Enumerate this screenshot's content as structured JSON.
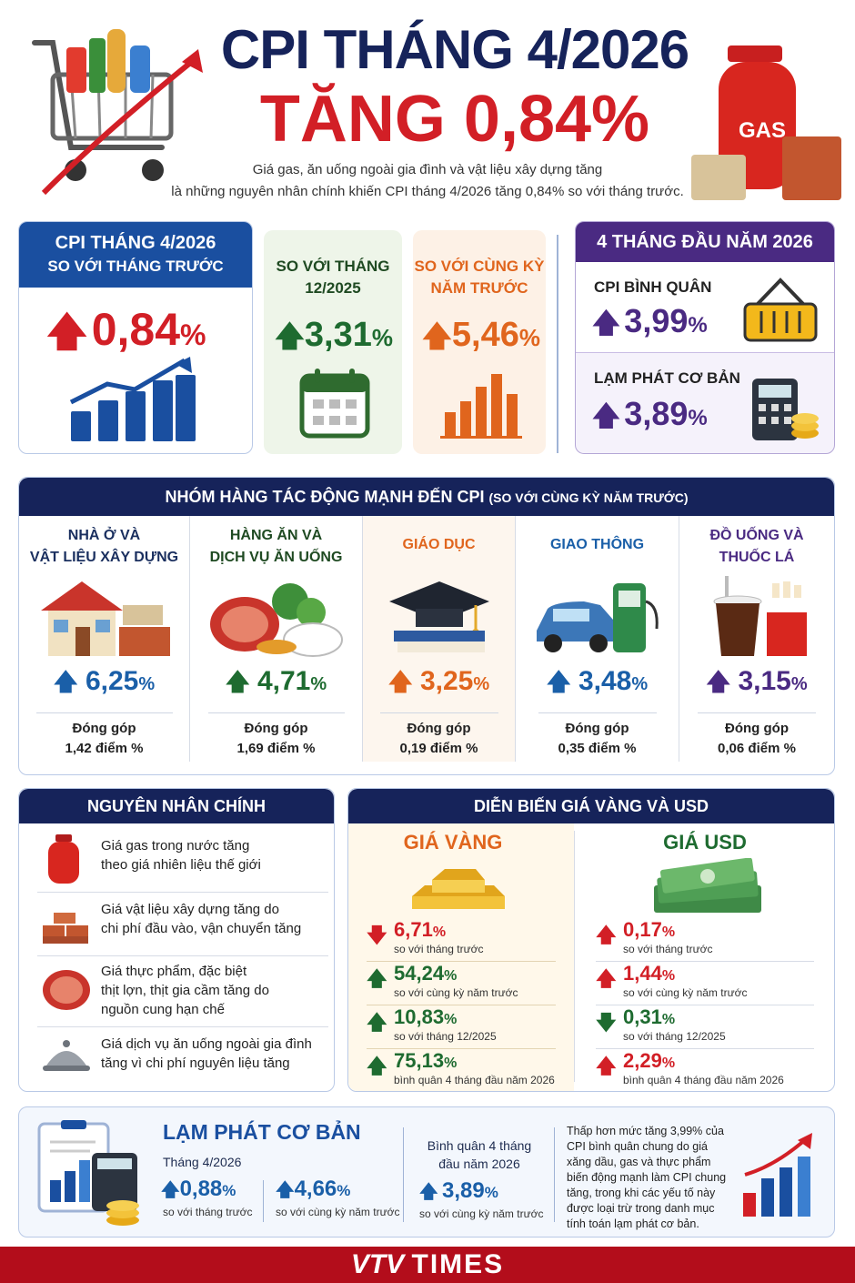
{
  "header": {
    "title_line1": "CPI THÁNG 4/2026",
    "title_line2": "TĂNG 0,84%",
    "subtitle_line1": "Giá gas, ăn uống ngoài gia đình và vật liệu xây dựng tăng",
    "subtitle_line2": "là những nguyên nhân chính khiến CPI tháng 4/2026 tăng 0,84% so với tháng trước.",
    "gas_label": "GAS"
  },
  "kpi": {
    "main": {
      "heading1": "CPI THÁNG 4/2026",
      "heading2": "SO VỚI THÁNG TRƯỚC",
      "value": "0,84",
      "unit": "%"
    },
    "vs_dec": {
      "heading1": "SO VỚI THÁNG",
      "heading2": "12/2025",
      "value": "3,31",
      "unit": "%"
    },
    "vs_yoy": {
      "heading1": "SO VỚI CÙNG KỲ",
      "heading2": "NĂM TRƯỚC",
      "value": "5,46",
      "unit": "%"
    },
    "four_months": {
      "heading": "4 THÁNG ĐẦU NĂM 2026",
      "cpi_label": "CPI BÌNH QUÂN",
      "cpi_value": "3,99",
      "cpi_unit": "%",
      "core_label": "LẠM PHÁT CƠ BẢN",
      "core_value": "3,89",
      "core_unit": "%"
    }
  },
  "groups": {
    "heading": "NHÓM HÀNG TÁC ĐỘNG MẠNH ĐẾN CPI",
    "heading_note": "(SO VỚI CÙNG KỲ NĂM TRƯỚC)",
    "items": [
      {
        "name1": "NHÀ Ở VÀ",
        "name2": "VẬT LIỆU XÂY DỰNG",
        "value": "6,25",
        "unit": "%",
        "contrib_label": "Đóng góp",
        "contrib": "1,42 điểm %"
      },
      {
        "name1": "HÀNG ĂN VÀ",
        "name2": "DỊCH VỤ ĂN UỐNG",
        "value": "4,71",
        "unit": "%",
        "contrib_label": "Đóng góp",
        "contrib": "1,69 điểm %"
      },
      {
        "name1": "GIÁO DỤC",
        "name2": "",
        "value": "3,25",
        "unit": "%",
        "contrib_label": "Đóng góp",
        "contrib": "0,19 điểm %"
      },
      {
        "name1": "GIAO THÔNG",
        "name2": "",
        "value": "3,48",
        "unit": "%",
        "contrib_label": "Đóng góp",
        "contrib": "0,35 điểm %"
      },
      {
        "name1": "ĐỒ UỐNG VÀ",
        "name2": "THUỐC LÁ",
        "value": "3,15",
        "unit": "%",
        "contrib_label": "Đóng góp",
        "contrib": "0,06 điểm %"
      }
    ],
    "colors": [
      "#1a5fa8",
      "#1e6b30",
      "#e0651d",
      "#1a5fa8",
      "#4a2a82"
    ]
  },
  "reasons": {
    "heading": "NGUYÊN NHÂN CHÍNH",
    "items": [
      {
        "line1": "Giá gas trong nước tăng",
        "line2": "theo giá nhiên liệu thế giới",
        "line3": ""
      },
      {
        "line1": "Giá vật liệu xây dựng tăng do",
        "line2": "chi phí đầu vào, vận chuyển tăng",
        "line3": ""
      },
      {
        "line1": "Giá thực phẩm, đặc biệt",
        "line2": "thịt lợn, thịt gia cầm tăng do",
        "line3": "nguồn cung hạn chế"
      },
      {
        "line1": "Giá dịch vụ ăn uống ngoài gia đình",
        "line2": "tăng vì chi phí nguyên liệu tăng",
        "line3": ""
      }
    ]
  },
  "gold_usd": {
    "heading": "DIỄN BIẾN GIÁ VÀNG VÀ USD",
    "gold": {
      "title": "GIÁ VÀNG",
      "rows": [
        {
          "dir": "down",
          "value": "6,71",
          "unit": "%",
          "label": "so với tháng trước"
        },
        {
          "dir": "up",
          "value": "54,24",
          "unit": "%",
          "label": "so với cùng kỳ năm trước"
        },
        {
          "dir": "up",
          "value": "10,83",
          "unit": "%",
          "label": "so với tháng 12/2025"
        },
        {
          "dir": "up",
          "value": "75,13",
          "unit": "%",
          "label": "bình quân 4 tháng đầu năm 2026"
        }
      ]
    },
    "usd": {
      "title": "GIÁ USD",
      "rows": [
        {
          "dir": "up",
          "value": "0,17",
          "unit": "%",
          "label": "so với tháng trước"
        },
        {
          "dir": "up",
          "value": "1,44",
          "unit": "%",
          "label": "so với cùng kỳ năm trước"
        },
        {
          "dir": "down",
          "value": "0,31",
          "unit": "%",
          "label": "so với tháng 12/2025"
        },
        {
          "dir": "up",
          "value": "2,29",
          "unit": "%",
          "label": "bình quân 4 tháng đầu năm 2026"
        }
      ]
    }
  },
  "core_inflation": {
    "heading": "LẠM PHÁT CƠ BẢN",
    "month_label": "Tháng 4/2026",
    "mom_value": "0,88",
    "mom_unit": "%",
    "mom_label": "so với tháng trước",
    "yoy_value": "4,66",
    "yoy_unit": "%",
    "yoy_label": "so với cùng kỳ năm trước",
    "avg_heading1": "Bình quân 4 tháng",
    "avg_heading2": "đầu năm 2026",
    "avg_value": "3,89",
    "avg_unit": "%",
    "avg_label": "so với cùng kỳ năm trước",
    "note": [
      "Thấp hơn mức tăng 3,99% của",
      "CPI bình quân chung do giá",
      "xăng dầu, gas và thực phẩm",
      "biến động mạnh làm CPI chung",
      "tăng, trong khi các yếu tố này",
      "được loại trừ trong danh mục",
      "tính toán lạm phát cơ bản."
    ]
  },
  "footer": {
    "brand_vtv": "VTV",
    "brand_times": "TIMES"
  }
}
